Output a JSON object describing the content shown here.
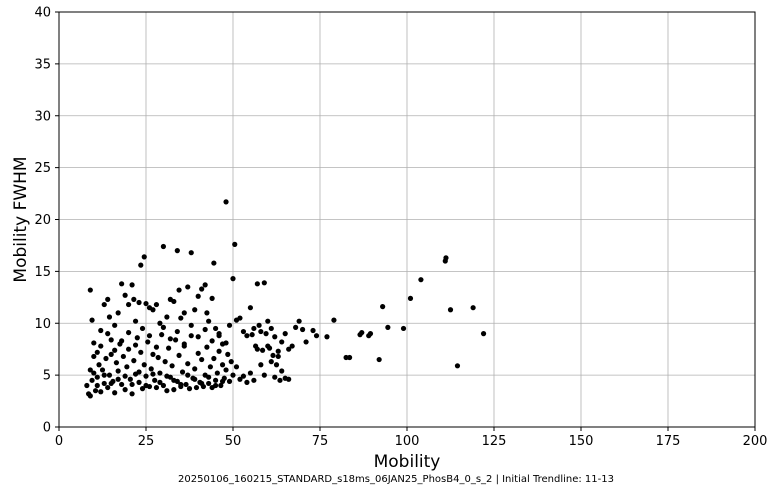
{
  "caption": "20250106_160215_STANDARD_s18ms_06JAN25_PhosB4_0_s_2 | Initial Trendline: 11-13",
  "chart_data": {
    "type": "scatter",
    "title": "",
    "xlabel": "Mobility",
    "ylabel": "Mobility FWHM",
    "xlim": [
      0,
      200
    ],
    "ylim": [
      0,
      40
    ],
    "xticks": [
      0,
      25,
      50,
      75,
      100,
      125,
      150,
      175,
      200
    ],
    "yticks": [
      0,
      5,
      10,
      15,
      20,
      25,
      30,
      35,
      40
    ],
    "grid": true,
    "marker_color": "#000000",
    "series": [
      {
        "points": [
          [
            9,
            13.2
          ],
          [
            9.5,
            10.3
          ],
          [
            10,
            6.8
          ],
          [
            11,
            7.2
          ],
          [
            12,
            9.3
          ],
          [
            13,
            11.8
          ],
          [
            14,
            12.3
          ],
          [
            14.5,
            10.6
          ],
          [
            15,
            8.4
          ],
          [
            16,
            9.8
          ],
          [
            17,
            11.0
          ],
          [
            18,
            13.8
          ],
          [
            19,
            12.7
          ],
          [
            20,
            11.8
          ],
          [
            21,
            13.7
          ],
          [
            21.5,
            12.3
          ],
          [
            22,
            10.2
          ],
          [
            23,
            12.0
          ],
          [
            23.5,
            15.6
          ],
          [
            24.5,
            16.4
          ],
          [
            25,
            11.9
          ],
          [
            26,
            11.5
          ],
          [
            27,
            11.3
          ],
          [
            28,
            11.8
          ],
          [
            29,
            10.0
          ],
          [
            30,
            17.4
          ],
          [
            31,
            10.6
          ],
          [
            32,
            12.3
          ],
          [
            33,
            12.1
          ],
          [
            34,
            17.0
          ],
          [
            34.5,
            13.2
          ],
          [
            35,
            10.5
          ],
          [
            36,
            11.0
          ],
          [
            37,
            13.5
          ],
          [
            38,
            16.8
          ],
          [
            39,
            11.3
          ],
          [
            40,
            12.6
          ],
          [
            41,
            13.3
          ],
          [
            42,
            13.7
          ],
          [
            42.5,
            11.0
          ],
          [
            43,
            10.2
          ],
          [
            44,
            12.4
          ],
          [
            44.5,
            15.8
          ],
          [
            45,
            9.5
          ],
          [
            46,
            8.8
          ],
          [
            47,
            8.0
          ],
          [
            48,
            21.7
          ],
          [
            49,
            9.8
          ],
          [
            50,
            14.3
          ],
          [
            50.5,
            17.6
          ],
          [
            51,
            10.3
          ],
          [
            52,
            10.5
          ],
          [
            53,
            9.2
          ],
          [
            54,
            8.8
          ],
          [
            55,
            11.5
          ],
          [
            56,
            9.5
          ],
          [
            57,
            13.8
          ],
          [
            58,
            9.2
          ],
          [
            59,
            13.9
          ],
          [
            60,
            10.2
          ],
          [
            61,
            9.5
          ],
          [
            62,
            8.7
          ],
          [
            63,
            7.3
          ],
          [
            64,
            8.2
          ],
          [
            65,
            9.0
          ],
          [
            66,
            7.5
          ],
          [
            67,
            7.8
          ],
          [
            68,
            9.6
          ],
          [
            69,
            10.2
          ],
          [
            70,
            9.4
          ],
          [
            71,
            8.2
          ],
          [
            73,
            9.3
          ],
          [
            74,
            8.8
          ],
          [
            77,
            8.7
          ],
          [
            79,
            10.3
          ],
          [
            82.5,
            6.7
          ],
          [
            83.5,
            6.7
          ],
          [
            86.5,
            8.9
          ],
          [
            87,
            9.1
          ],
          [
            89,
            8.8
          ],
          [
            89.5,
            9.0
          ],
          [
            92,
            6.5
          ],
          [
            93,
            11.6
          ],
          [
            94.5,
            9.6
          ],
          [
            99,
            9.5
          ],
          [
            101,
            12.4
          ],
          [
            104,
            14.2
          ],
          [
            111,
            16.0
          ],
          [
            111.2,
            16.3
          ],
          [
            112.5,
            11.3
          ],
          [
            114.5,
            5.9
          ],
          [
            119,
            11.5
          ],
          [
            122,
            9.0
          ],
          [
            8,
            4.0
          ],
          [
            8.5,
            3.2
          ],
          [
            9,
            3.0
          ],
          [
            9.5,
            4.5
          ],
          [
            10,
            5.2
          ],
          [
            10.5,
            3.5
          ],
          [
            11,
            4.8
          ],
          [
            11.5,
            6.0
          ],
          [
            12,
            3.4
          ],
          [
            12.5,
            5.5
          ],
          [
            13,
            4.2
          ],
          [
            13.5,
            6.6
          ],
          [
            14,
            3.8
          ],
          [
            14.5,
            5.0
          ],
          [
            15,
            7.0
          ],
          [
            15.5,
            4.4
          ],
          [
            16,
            3.3
          ],
          [
            16.5,
            6.2
          ],
          [
            17,
            5.4
          ],
          [
            17.5,
            8.0
          ],
          [
            18,
            4.1
          ],
          [
            18.5,
            6.8
          ],
          [
            19,
            3.6
          ],
          [
            19.5,
            5.8
          ],
          [
            20,
            7.5
          ],
          [
            20.5,
            4.6
          ],
          [
            21,
            3.2
          ],
          [
            21.5,
            6.4
          ],
          [
            22,
            5.1
          ],
          [
            22.5,
            8.6
          ],
          [
            23,
            4.3
          ],
          [
            23.5,
            7.2
          ],
          [
            24,
            3.7
          ],
          [
            24.5,
            6.0
          ],
          [
            25,
            4.9
          ],
          [
            25.5,
            8.2
          ],
          [
            26,
            3.9
          ],
          [
            26.5,
            5.6
          ],
          [
            27,
            7.0
          ],
          [
            27.5,
            4.5
          ],
          [
            28,
            3.8
          ],
          [
            28.5,
            6.7
          ],
          [
            29,
            5.2
          ],
          [
            29.5,
            8.9
          ],
          [
            30,
            4.0
          ],
          [
            30.5,
            6.3
          ],
          [
            31,
            3.5
          ],
          [
            31.5,
            7.6
          ],
          [
            32,
            4.8
          ],
          [
            32.5,
            5.9
          ],
          [
            33,
            3.6
          ],
          [
            33.5,
            8.4
          ],
          [
            34,
            4.4
          ],
          [
            34.5,
            6.9
          ],
          [
            35,
            3.9
          ],
          [
            35.5,
            5.3
          ],
          [
            36,
            7.8
          ],
          [
            36.5,
            4.1
          ],
          [
            37,
            6.1
          ],
          [
            37.5,
            3.7
          ],
          [
            38,
            8.8
          ],
          [
            38.5,
            4.7
          ],
          [
            39,
            5.6
          ],
          [
            39.5,
            3.8
          ],
          [
            40,
            7.1
          ],
          [
            40.5,
            4.3
          ],
          [
            41,
            6.5
          ],
          [
            41.5,
            3.9
          ],
          [
            42,
            5.0
          ],
          [
            42.5,
            7.7
          ],
          [
            43,
            4.2
          ],
          [
            43.5,
            5.8
          ],
          [
            44,
            3.8
          ],
          [
            44.5,
            6.6
          ],
          [
            45,
            4.5
          ],
          [
            45.5,
            5.2
          ],
          [
            46,
            7.3
          ],
          [
            46.5,
            4.0
          ],
          [
            47,
            6.0
          ],
          [
            47.5,
            4.7
          ],
          [
            48,
            5.5
          ],
          [
            48.5,
            7.0
          ],
          [
            49,
            4.4
          ],
          [
            49.5,
            6.3
          ],
          [
            50,
            5.0
          ],
          [
            51,
            5.8
          ],
          [
            52,
            4.6
          ],
          [
            53,
            4.9
          ],
          [
            54,
            4.3
          ],
          [
            55,
            5.2
          ],
          [
            56,
            4.5
          ],
          [
            57,
            7.5
          ],
          [
            58,
            6.0
          ],
          [
            59,
            5.0
          ],
          [
            60,
            7.8
          ],
          [
            61,
            6.3
          ],
          [
            62,
            4.8
          ],
          [
            63,
            6.8
          ],
          [
            64,
            5.4
          ],
          [
            65,
            4.7
          ],
          [
            66,
            4.6
          ],
          [
            56.5,
            7.8
          ],
          [
            58.5,
            7.4
          ],
          [
            60.5,
            7.6
          ],
          [
            62.5,
            6.0
          ],
          [
            63.5,
            4.5
          ],
          [
            57.5,
            9.8
          ],
          [
            59.5,
            9.0
          ],
          [
            61.5,
            6.9
          ],
          [
            55.5,
            8.9
          ],
          [
            10,
            8.1
          ],
          [
            12,
            7.8
          ],
          [
            14,
            9.0
          ],
          [
            16,
            7.4
          ],
          [
            18,
            8.3
          ],
          [
            20,
            9.1
          ],
          [
            22,
            7.9
          ],
          [
            24,
            9.5
          ],
          [
            26,
            8.8
          ],
          [
            28,
            7.7
          ],
          [
            30,
            9.6
          ],
          [
            32,
            8.5
          ],
          [
            34,
            9.2
          ],
          [
            36,
            8.0
          ],
          [
            38,
            9.8
          ],
          [
            40,
            8.7
          ],
          [
            42,
            9.4
          ],
          [
            44,
            8.3
          ],
          [
            46,
            9.0
          ],
          [
            48,
            8.1
          ],
          [
            9,
            5.5
          ],
          [
            11,
            4.0
          ],
          [
            13,
            5.0
          ],
          [
            15,
            4.2
          ],
          [
            17,
            4.6
          ],
          [
            19,
            4.9
          ],
          [
            21,
            4.1
          ],
          [
            23,
            5.3
          ],
          [
            25,
            4.0
          ],
          [
            27,
            5.1
          ],
          [
            29,
            4.3
          ],
          [
            31,
            4.9
          ],
          [
            33,
            4.5
          ],
          [
            35,
            4.1
          ],
          [
            37,
            5.0
          ],
          [
            39,
            4.6
          ],
          [
            41,
            4.2
          ],
          [
            43,
            4.8
          ],
          [
            45,
            4.0
          ],
          [
            47,
            4.4
          ]
        ]
      }
    ]
  }
}
